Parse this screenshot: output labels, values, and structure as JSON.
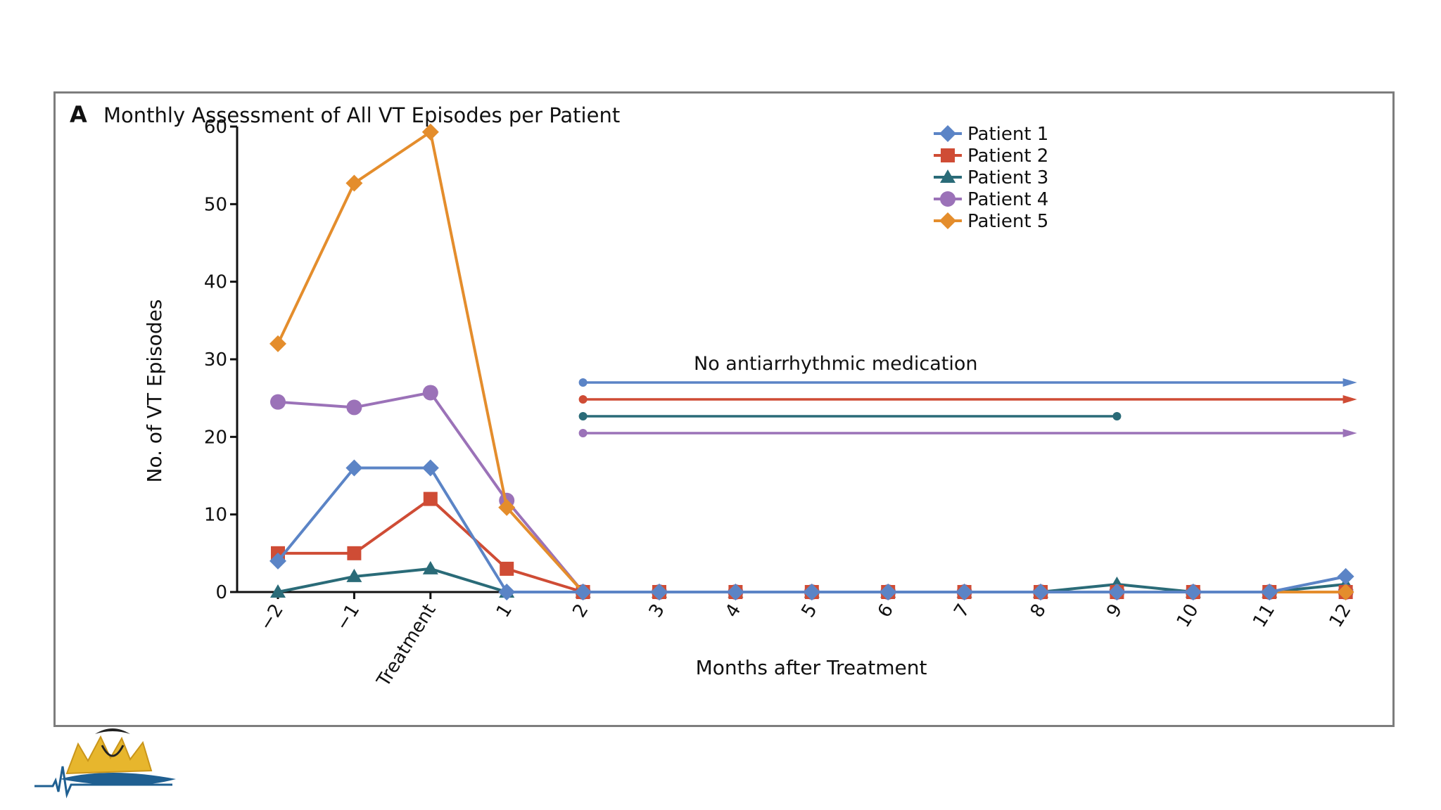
{
  "panel": {
    "letter": "A",
    "title": "Monthly Assessment of All VT Episodes per Patient"
  },
  "annotation": "No antiarrhythmic medication",
  "chart_data": {
    "type": "line",
    "title": "Monthly Assessment of All VT Episodes per Patient",
    "xlabel": "Months after Treatment",
    "ylabel": "No. of VT Episodes",
    "ylim": [
      0,
      60
    ],
    "yticks": [
      "0",
      "10",
      "20",
      "30",
      "40",
      "50",
      "60"
    ],
    "categories": [
      "−2",
      "−1",
      "Treatment",
      "1",
      "2",
      "3",
      "4",
      "5",
      "6",
      "7",
      "8",
      "9",
      "10",
      "11",
      "12"
    ],
    "legend_position": "top-right",
    "grid": false,
    "series": [
      {
        "name": "Patient 1",
        "color": "#5b84c6",
        "marker": "diamond",
        "values": [
          4,
          16,
          16,
          0,
          0,
          0,
          0,
          0,
          0,
          0,
          0,
          0,
          0,
          0,
          2
        ]
      },
      {
        "name": "Patient 2",
        "color": "#cf4c35",
        "marker": "square",
        "values": [
          5,
          5,
          12,
          3,
          0,
          0,
          0,
          0,
          0,
          0,
          0,
          0,
          0,
          0,
          0
        ]
      },
      {
        "name": "Patient 3",
        "color": "#2a6b78",
        "marker": "triangle",
        "values": [
          0,
          2,
          3,
          0,
          0,
          0,
          0,
          0,
          0,
          0,
          0,
          1,
          0,
          0,
          1
        ]
      },
      {
        "name": "Patient 4",
        "color": "#9b72b8",
        "marker": "circle",
        "values": [
          24.5,
          23.8,
          25.7,
          11.8,
          0,
          0,
          0,
          0,
          0,
          0,
          0,
          0,
          0,
          0,
          0
        ]
      },
      {
        "name": "Patient 5",
        "color": "#e48d2c",
        "marker": "diamond",
        "values": [
          32,
          52.7,
          59.3,
          10.9,
          0,
          0,
          0,
          0,
          0,
          0,
          0,
          0,
          0,
          0,
          0
        ]
      }
    ],
    "medication_periods": [
      {
        "series": "Patient 1",
        "start": "2",
        "end": "12",
        "ongoing": true
      },
      {
        "series": "Patient 2",
        "start": "2",
        "end": "12",
        "ongoing": true
      },
      {
        "series": "Patient 3",
        "start": "2",
        "end": "9",
        "ongoing": false
      },
      {
        "series": "Patient 4",
        "start": "2",
        "end": "12",
        "ongoing": true
      }
    ]
  }
}
